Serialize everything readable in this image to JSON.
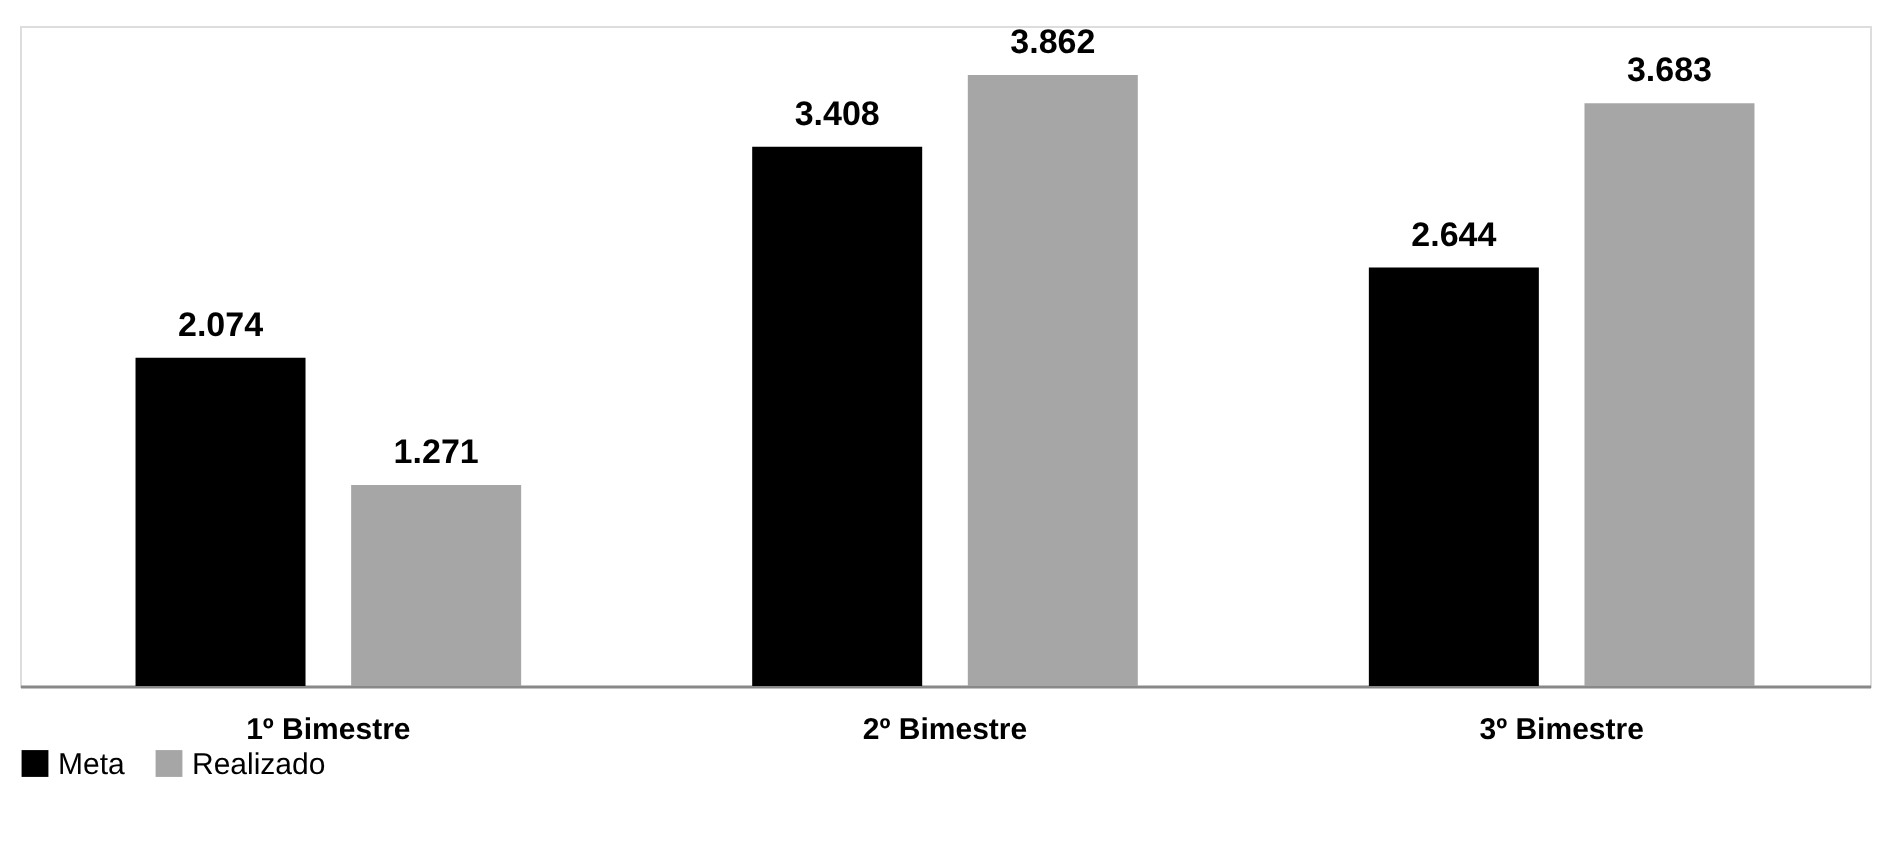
{
  "chart_data": {
    "type": "bar",
    "categories": [
      "1º Bimestre",
      "2º Bimestre",
      "3º Bimestre"
    ],
    "series": [
      {
        "name": "Meta",
        "color": "#000000",
        "values": [
          2074,
          3408,
          2644
        ],
        "value_labels": [
          "2.074",
          "3.408",
          "2.644"
        ]
      },
      {
        "name": "Realizado",
        "color": "#a6a6a6",
        "values": [
          1271,
          3862,
          3683
        ],
        "value_labels": [
          "1.271",
          "3.862",
          "3.683"
        ]
      }
    ],
    "grid": false,
    "legend": "bottom",
    "tick_labels": "x"
  }
}
